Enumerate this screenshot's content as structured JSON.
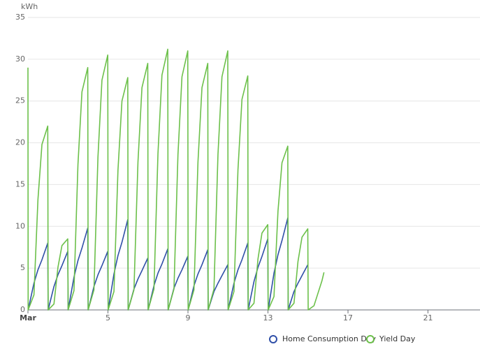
{
  "chart_data": {
    "type": "line",
    "y_unit": "kWh",
    "x": [
      1,
      1.01,
      1.3,
      1.5,
      1.7,
      1.99,
      2.01,
      2.3,
      2.5,
      2.7,
      2.99,
      3.01,
      3.3,
      3.5,
      3.7,
      3.99,
      4.01,
      4.3,
      4.5,
      4.7,
      4.99,
      5.01,
      5.3,
      5.5,
      5.7,
      5.99,
      6.01,
      6.3,
      6.5,
      6.7,
      6.99,
      7.01,
      7.3,
      7.5,
      7.7,
      7.99,
      8.01,
      8.3,
      8.5,
      8.7,
      8.99,
      9.01,
      9.3,
      9.5,
      9.7,
      9.99,
      10.01,
      10.3,
      10.5,
      10.7,
      10.99,
      11.01,
      11.3,
      11.5,
      11.7,
      11.99,
      12.01,
      12.3,
      12.5,
      12.7,
      12.99,
      13.01,
      13.3,
      13.5,
      13.7,
      13.99,
      14.01,
      14.3,
      14.5,
      14.7,
      14.99,
      15.01,
      15.3,
      15.5,
      15.7,
      15.8
    ],
    "series": [
      {
        "name": "Home Consumption Day",
        "color": "#2f4fa8",
        "values": [
          null,
          0,
          3.2,
          4.8,
          6,
          8,
          0,
          2.8,
          4.2,
          5.3,
          7,
          0,
          3.9,
          5.9,
          7.4,
          9.8,
          0,
          2.8,
          4.2,
          5.3,
          7,
          0,
          4.3,
          6.5,
          8.1,
          10.8,
          0,
          2.5,
          3.7,
          4.7,
          6.2,
          0,
          2.9,
          4.4,
          5.5,
          7.3,
          0,
          2.6,
          3.8,
          4.8,
          6.4,
          0,
          2.9,
          4.3,
          5.4,
          7.2,
          0,
          2.2,
          3.2,
          4.1,
          5.4,
          0,
          3.2,
          4.8,
          6,
          8,
          0,
          3.4,
          5.1,
          6.4,
          8.5,
          0,
          4.4,
          6.6,
          8.3,
          11,
          0,
          2.2,
          3.2,
          4.1,
          5.4,
          null,
          null,
          null,
          null,
          null
        ]
      },
      {
        "name": "Yield Day",
        "color": "#6cc04a",
        "values": [
          29,
          0,
          1.8,
          13.2,
          19.8,
          22,
          0,
          0.7,
          5.1,
          7.7,
          8.5,
          0,
          2.3,
          17.4,
          26.1,
          29,
          0,
          2.4,
          18.3,
          27.5,
          30.5,
          0,
          2.2,
          16.7,
          25,
          27.8,
          0,
          2.4,
          17.7,
          26.6,
          29.5,
          0,
          2.5,
          18.7,
          28.1,
          31.2,
          0,
          2.5,
          18.6,
          27.9,
          31,
          0,
          2.4,
          17.7,
          26.6,
          29.5,
          0,
          2.5,
          18.6,
          27.9,
          31,
          0,
          2.2,
          16.8,
          25.2,
          28,
          0,
          0.8,
          6.1,
          9.2,
          10.2,
          0,
          1.6,
          11.8,
          17.6,
          19.6,
          0,
          0.8,
          5.8,
          8.7,
          9.7,
          0,
          0.5,
          2,
          3.5,
          4.5
        ]
      }
    ],
    "xlim": [
      1,
      23.6
    ],
    "xticks": [
      {
        "value": 1,
        "label": "Mar"
      },
      5,
      9,
      13,
      17,
      21
    ],
    "ylim": [
      0,
      35
    ],
    "yticks": [
      0,
      5,
      10,
      15,
      20,
      25,
      30,
      35
    ],
    "grid": true
  }
}
